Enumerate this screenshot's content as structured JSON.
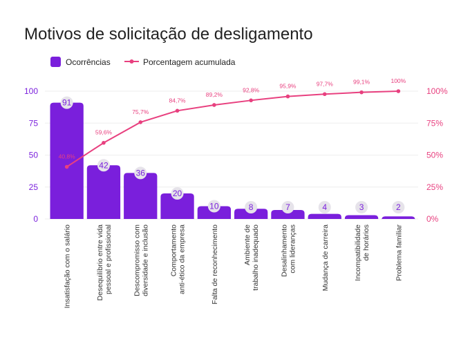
{
  "chart_data": {
    "type": "bar",
    "title": "Motivos de solicitação de desligamento",
    "legend": {
      "position": "top-left",
      "bar_series": "Ocorrências",
      "line_series": "Porcentagem acumulada"
    },
    "categories": [
      [
        "Insatisfação com o salário"
      ],
      [
        "Desequilíbrio entre vida",
        "pessoal e profissional"
      ],
      [
        "Descompromisso com",
        "diversidade e inclusão"
      ],
      [
        "Comportamento",
        "anti-ético da empresa"
      ],
      [
        "Falta de reconhecimento"
      ],
      [
        "Ambiente de",
        "trabalho inadequado"
      ],
      [
        "Desalinhamento",
        "com lideranças"
      ],
      [
        "Mudança de carreira"
      ],
      [
        "Incompatibilidade",
        "de horários"
      ],
      [
        "Problema familiar"
      ]
    ],
    "series": [
      {
        "name": "Ocorrências",
        "type": "bar",
        "axis": "left",
        "values": [
          91,
          42,
          36,
          20,
          10,
          8,
          7,
          4,
          3,
          2
        ],
        "color": "#7a1fdc"
      },
      {
        "name": "Porcentagem acumulada",
        "type": "line",
        "axis": "right",
        "values": [
          40.8,
          59.6,
          75.7,
          84.7,
          89.2,
          92.8,
          95.9,
          97.7,
          99.1,
          100
        ],
        "labels": [
          "40,8%",
          "59,6%",
          "75,7%",
          "84,7%",
          "89,2%",
          "92,8%",
          "95,9%",
          "97,7%",
          "99,1%",
          "100%"
        ],
        "color": "#e8407f"
      }
    ],
    "ylim": [
      0,
      100
    ],
    "yticks": [
      "0",
      "25",
      "50",
      "75",
      "100"
    ],
    "y2lim": [
      0,
      100
    ],
    "y2ticks": [
      "0%",
      "25%",
      "50%",
      "75%",
      "100%"
    ],
    "grid": true
  }
}
